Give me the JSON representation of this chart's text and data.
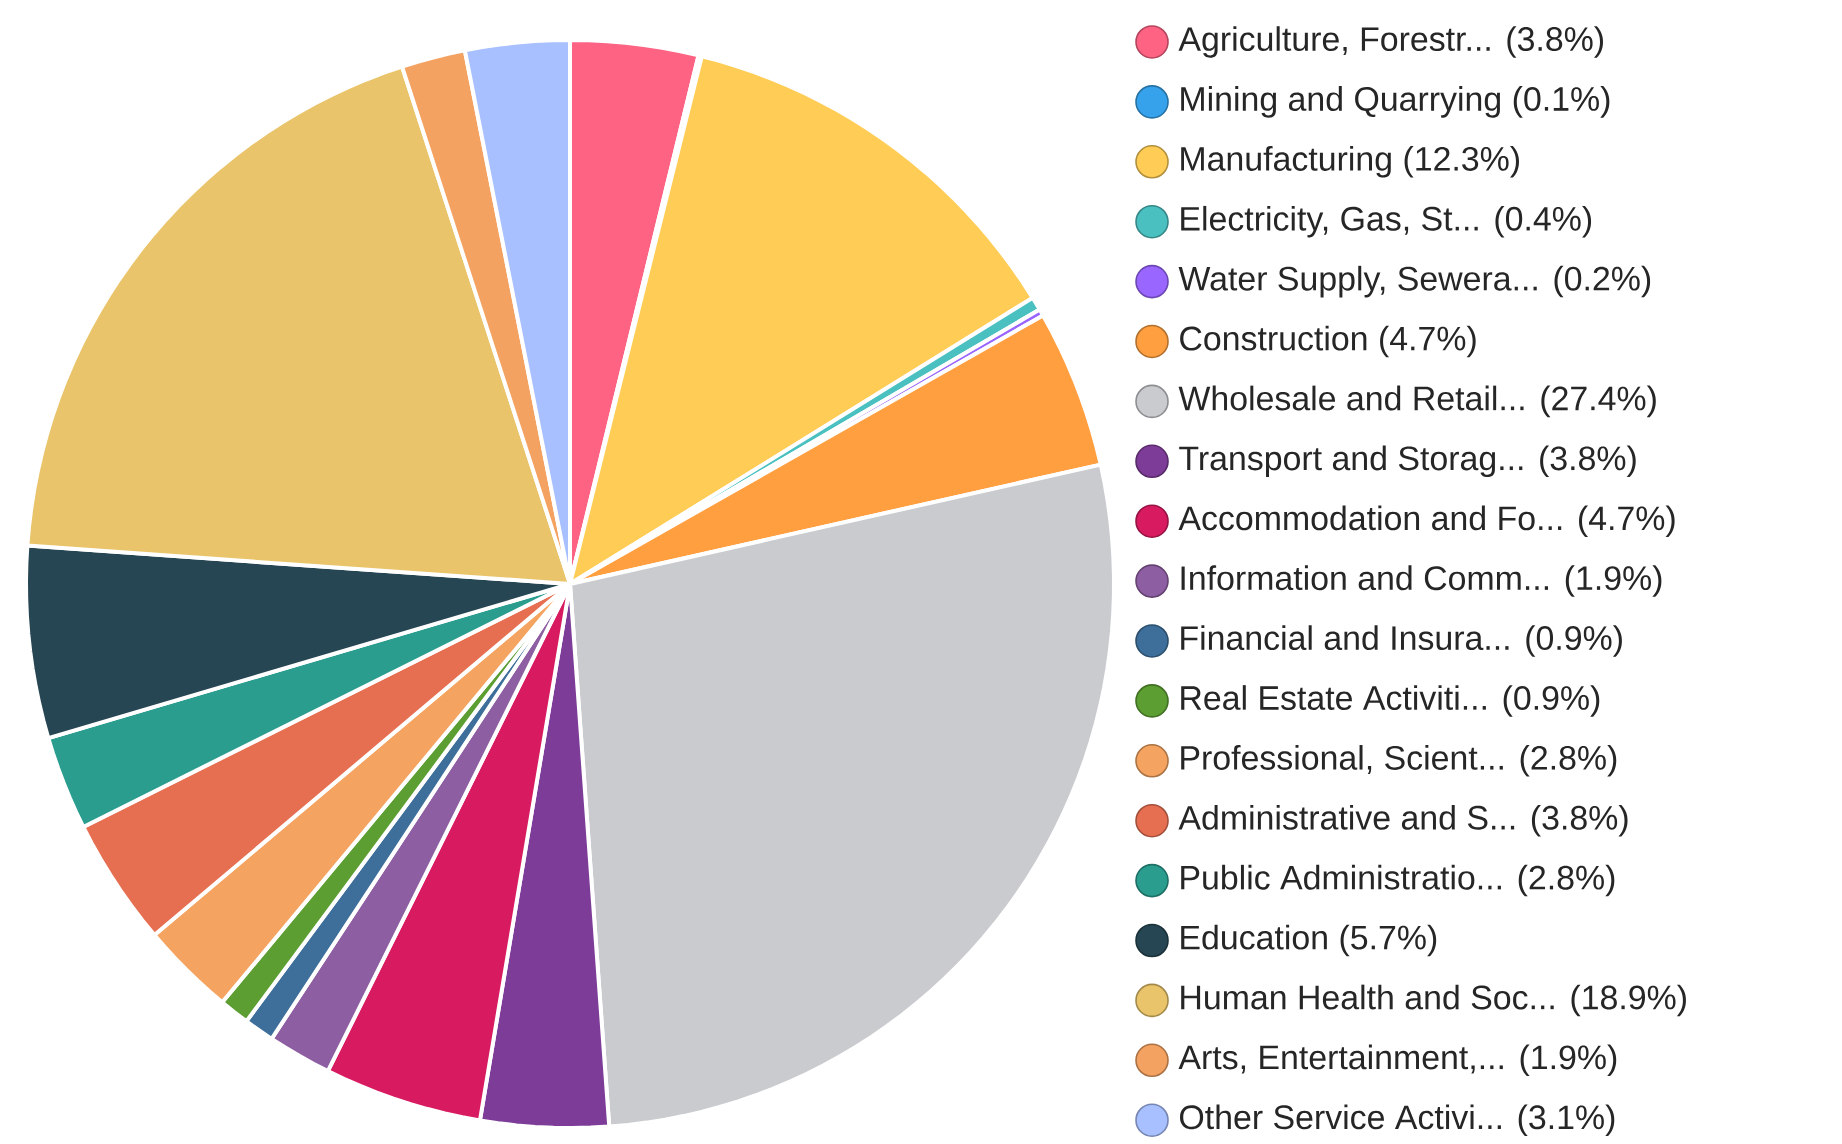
{
  "chart_data": {
    "type": "pie",
    "legend": "right",
    "categories": [
      "Agriculture, Forestr...",
      "Mining and Quarrying",
      "Manufacturing",
      "Electricity, Gas, St...",
      "Water Supply, Sewera...",
      "Construction",
      "Wholesale and Retail...",
      "Transport and Storag...",
      "Accommodation and Fo...",
      "Information and Comm...",
      "Financial and Insura...",
      "Real Estate Activiti...",
      "Professional, Scient...",
      "Administrative and S...",
      "Public Administratio...",
      "Education",
      "Human Health and Soc...",
      "Arts, Entertainment,...",
      "Other Service Activi..."
    ],
    "values": [
      3.8,
      0.1,
      12.3,
      0.4,
      0.2,
      4.7,
      27.4,
      3.8,
      4.7,
      1.9,
      0.9,
      0.9,
      2.8,
      3.8,
      2.8,
      5.7,
      18.9,
      1.9,
      3.1
    ],
    "value_labels": [
      "(3.8%)",
      "(0.1%)",
      "(12.3%)",
      "(0.4%)",
      "(0.2%)",
      "(4.7%)",
      "(27.4%)",
      "(3.8%)",
      "(4.7%)",
      "(1.9%)",
      "(0.9%)",
      "(0.9%)",
      "(2.8%)",
      "(3.8%)",
      "(2.8%)",
      "(5.7%)",
      "(18.9%)",
      "(1.9%)",
      "(3.1%)"
    ],
    "colors": [
      "#ff6384",
      "#36a2eb",
      "#ffcd56",
      "#4bc0c0",
      "#9966ff",
      "#ff9f40",
      "#c9cbcf",
      "#7d3c98",
      "#d81b60",
      "#8e5ea2",
      "#3e6f9a",
      "#5c9e31",
      "#f4a460",
      "#e76f51",
      "#2a9d8f",
      "#264653",
      "#e9c46a",
      "#f4a261",
      "#a8c0ff"
    ]
  }
}
